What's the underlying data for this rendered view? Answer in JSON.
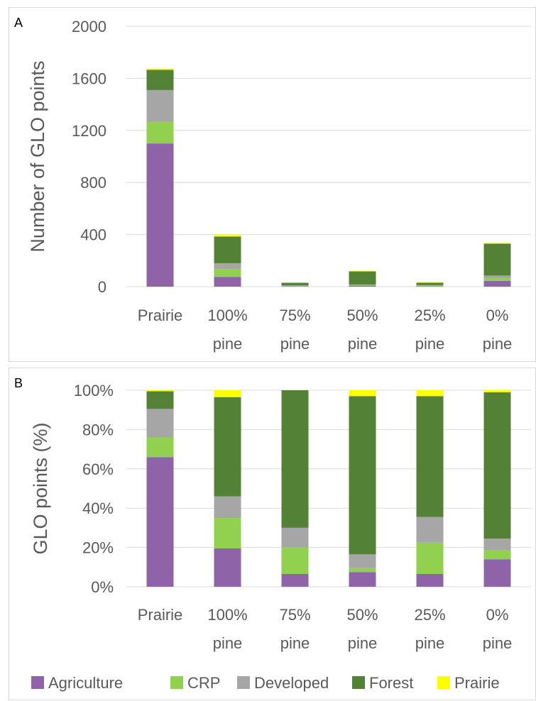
{
  "colors": {
    "Agriculture": "#8e63a8",
    "CRP": "#92d050",
    "Developed": "#a6a6a6",
    "Forest": "#538135",
    "Prairie": "#ffff00"
  },
  "legend": {
    "placement": "bottom",
    "items": [
      "Agriculture",
      "CRP",
      "Developed",
      "Forest",
      "Prairie"
    ]
  },
  "chart_data": [
    {
      "type": "bar",
      "stacked": true,
      "panel_label": "A",
      "ylabel": "Number of GLO points",
      "ylim": [
        0,
        2000
      ],
      "yticks": [
        0,
        400,
        800,
        1200,
        1600,
        2000
      ],
      "ytick_labels": [
        "0",
        "400",
        "800",
        "1200",
        "1600",
        "2000"
      ],
      "grid": true,
      "categories": [
        [
          "Prairie"
        ],
        [
          "100%",
          "pine"
        ],
        [
          "75%",
          "pine"
        ],
        [
          "50%",
          "pine"
        ],
        [
          "25%",
          "pine"
        ],
        [
          "0%",
          "pine"
        ]
      ],
      "series": [
        {
          "name": "Agriculture",
          "values": [
            1100,
            75,
            2,
            8,
            2,
            45
          ]
        },
        {
          "name": "CRP",
          "values": [
            165,
            60,
            4,
            2,
            6,
            20
          ]
        },
        {
          "name": "Developed",
          "values": [
            245,
            45,
            3,
            7,
            4,
            20
          ]
        },
        {
          "name": "Forest",
          "values": [
            155,
            205,
            21,
            100,
            20,
            245
          ]
        },
        {
          "name": "Prairie",
          "values": [
            10,
            15,
            0,
            3,
            1,
            5
          ]
        }
      ]
    },
    {
      "type": "bar",
      "stacked": true,
      "panel_label": "B",
      "ylabel": "GLO points (%)",
      "ylim": [
        0,
        100
      ],
      "yticks": [
        0,
        20,
        40,
        60,
        80,
        100
      ],
      "ytick_labels": [
        "0%",
        "20%",
        "40%",
        "60%",
        "80%",
        "100%"
      ],
      "grid": true,
      "categories": [
        [
          "Prairie"
        ],
        [
          "100%",
          "pine"
        ],
        [
          "75%",
          "pine"
        ],
        [
          "50%",
          "pine"
        ],
        [
          "25%",
          "pine"
        ],
        [
          "0%",
          "pine"
        ]
      ],
      "series": [
        {
          "name": "Agriculture",
          "values": [
            66,
            19.5,
            6.5,
            7.5,
            6.5,
            14
          ]
        },
        {
          "name": "CRP",
          "values": [
            10,
            15.5,
            13.5,
            2,
            16,
            4.5
          ]
        },
        {
          "name": "Developed",
          "values": [
            14.5,
            11,
            10,
            7,
            13,
            6
          ]
        },
        {
          "name": "Forest",
          "values": [
            9,
            50.5,
            70,
            80.5,
            61.5,
            74.5
          ]
        },
        {
          "name": "Prairie",
          "values": [
            0.5,
            3.5,
            0,
            3,
            3,
            1
          ]
        }
      ]
    }
  ]
}
